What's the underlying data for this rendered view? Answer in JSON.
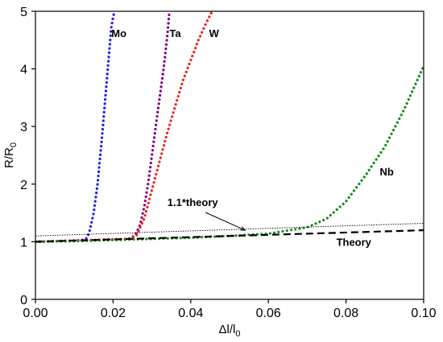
{
  "chart_data": {
    "type": "line",
    "title": "",
    "xlabel": {
      "main": "Δl/l",
      "sub": "0"
    },
    "ylabel": {
      "main": "R/R",
      "sub": "0"
    },
    "xlim": [
      0.0,
      0.1
    ],
    "ylim": [
      0,
      5
    ],
    "xticks": [
      "0.00",
      "0.02",
      "0.04",
      "0.06",
      "0.08",
      "0.10"
    ],
    "yticks": [
      "0",
      "1",
      "2",
      "3",
      "4",
      "5"
    ],
    "grid": false,
    "series": [
      {
        "name": "Mo",
        "color": "#1f1fe6",
        "style": "dotted",
        "x": [
          0.0,
          0.005,
          0.01,
          0.012,
          0.013,
          0.0135,
          0.014,
          0.015,
          0.016,
          0.017,
          0.018,
          0.019,
          0.0195,
          0.02,
          0.0204
        ],
        "y": [
          1.0,
          1.01,
          1.02,
          1.03,
          1.05,
          1.1,
          1.2,
          1.5,
          2.0,
          2.7,
          3.5,
          4.3,
          4.7,
          4.9,
          5.0
        ]
      },
      {
        "name": "Ta",
        "color": "#800080",
        "style": "dotted",
        "x": [
          0.0,
          0.01,
          0.02,
          0.024,
          0.025,
          0.026,
          0.027,
          0.028,
          0.029,
          0.03,
          0.031,
          0.032,
          0.033,
          0.034,
          0.0345
        ],
        "y": [
          1.0,
          1.02,
          1.04,
          1.05,
          1.08,
          1.15,
          1.3,
          1.6,
          2.0,
          2.5,
          3.0,
          3.5,
          4.0,
          4.6,
          5.0
        ]
      },
      {
        "name": "W",
        "color": "#ee2222",
        "style": "dotted",
        "x": [
          0.0,
          0.01,
          0.02,
          0.024,
          0.026,
          0.028,
          0.03,
          0.032,
          0.034,
          0.036,
          0.038,
          0.04,
          0.042,
          0.044,
          0.0455
        ],
        "y": [
          1.0,
          1.02,
          1.04,
          1.05,
          1.1,
          1.4,
          1.9,
          2.4,
          2.9,
          3.35,
          3.8,
          4.15,
          4.5,
          4.8,
          5.0
        ]
      },
      {
        "name": "Nb",
        "color": "#1a8a1a",
        "style": "dotted",
        "x": [
          0.0,
          0.01,
          0.02,
          0.03,
          0.04,
          0.05,
          0.06,
          0.07,
          0.075,
          0.08,
          0.085,
          0.09,
          0.095,
          0.1
        ],
        "y": [
          1.0,
          1.01,
          1.03,
          1.05,
          1.07,
          1.1,
          1.14,
          1.25,
          1.4,
          1.7,
          2.15,
          2.65,
          3.3,
          4.05
        ]
      },
      {
        "name": "1.1*theory",
        "color": "#000000",
        "style": "thin",
        "x": [
          0.0,
          0.1
        ],
        "y": [
          1.1,
          1.32
        ]
      },
      {
        "name": "Theory",
        "color": "#000000",
        "style": "dashed",
        "x": [
          0.0,
          0.1
        ],
        "y": [
          1.0,
          1.2
        ]
      }
    ],
    "annotations": [
      {
        "text": "Mo",
        "x": 0.0215,
        "y": 4.55
      },
      {
        "text": "Ta",
        "x": 0.036,
        "y": 4.55
      },
      {
        "text": "W",
        "x": 0.046,
        "y": 4.55
      },
      {
        "text": "Nb",
        "x": 0.0905,
        "y": 2.15
      },
      {
        "text": "1.1*theory",
        "x": 0.0405,
        "y": 1.62,
        "arrow_to": [
          0.054,
          1.2
        ]
      },
      {
        "text": "Theory",
        "x": 0.082,
        "y": 0.93
      }
    ]
  }
}
